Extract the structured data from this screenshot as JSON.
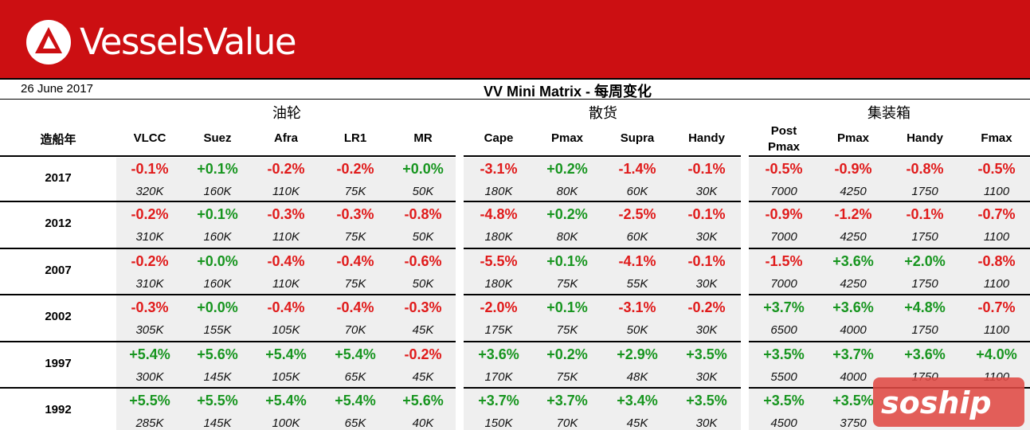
{
  "brand": {
    "name": "VesselsValue"
  },
  "report": {
    "date": "26 June 2017",
    "title": "VV Mini Matrix - 每周变化"
  },
  "groups": [
    "油轮",
    "散货",
    "集装箱"
  ],
  "year_header": "造船年",
  "columns": [
    "VLCC",
    "Suez",
    "Afra",
    "LR1",
    "MR",
    "Cape",
    "Pmax",
    "Supra",
    "Handy",
    "Post Pmax",
    "Pmax",
    "Handy",
    "Fmax"
  ],
  "rows": [
    {
      "year": "2017",
      "pct": [
        "-0.1%",
        "+0.1%",
        "-0.2%",
        "-0.2%",
        "+0.0%",
        "-3.1%",
        "+0.2%",
        "-1.4%",
        "-0.1%",
        "-0.5%",
        "-0.9%",
        "-0.8%",
        "-0.5%"
      ],
      "val": [
        "320K",
        "160K",
        "110K",
        "75K",
        "50K",
        "180K",
        "80K",
        "60K",
        "30K",
        "7000",
        "4250",
        "1750",
        "1100"
      ]
    },
    {
      "year": "2012",
      "pct": [
        "-0.2%",
        "+0.1%",
        "-0.3%",
        "-0.3%",
        "-0.8%",
        "-4.8%",
        "+0.2%",
        "-2.5%",
        "-0.1%",
        "-0.9%",
        "-1.2%",
        "-0.1%",
        "-0.7%"
      ],
      "val": [
        "310K",
        "160K",
        "110K",
        "75K",
        "50K",
        "180K",
        "80K",
        "60K",
        "30K",
        "7000",
        "4250",
        "1750",
        "1100"
      ]
    },
    {
      "year": "2007",
      "pct": [
        "-0.2%",
        "+0.0%",
        "-0.4%",
        "-0.4%",
        "-0.6%",
        "-5.5%",
        "+0.1%",
        "-4.1%",
        "-0.1%",
        "-1.5%",
        "+3.6%",
        "+2.0%",
        "-0.8%"
      ],
      "val": [
        "310K",
        "160K",
        "110K",
        "75K",
        "50K",
        "180K",
        "75K",
        "55K",
        "30K",
        "7000",
        "4250",
        "1750",
        "1100"
      ]
    },
    {
      "year": "2002",
      "pct": [
        "-0.3%",
        "+0.0%",
        "-0.4%",
        "-0.4%",
        "-0.3%",
        "-2.0%",
        "+0.1%",
        "-3.1%",
        "-0.2%",
        "+3.7%",
        "+3.6%",
        "+4.8%",
        "-0.7%"
      ],
      "val": [
        "305K",
        "155K",
        "105K",
        "70K",
        "45K",
        "175K",
        "75K",
        "50K",
        "30K",
        "6500",
        "4000",
        "1750",
        "1100"
      ]
    },
    {
      "year": "1997",
      "pct": [
        "+5.4%",
        "+5.6%",
        "+5.4%",
        "+5.4%",
        "-0.2%",
        "+3.6%",
        "+0.2%",
        "+2.9%",
        "+3.5%",
        "+3.5%",
        "+3.7%",
        "+3.6%",
        "+4.0%"
      ],
      "val": [
        "300K",
        "145K",
        "105K",
        "65K",
        "45K",
        "170K",
        "75K",
        "48K",
        "30K",
        "5500",
        "4000",
        "1750",
        "1100"
      ]
    },
    {
      "year": "1992",
      "pct": [
        "+5.5%",
        "+5.5%",
        "+5.4%",
        "+5.4%",
        "+5.6%",
        "+3.7%",
        "+3.7%",
        "+3.4%",
        "+3.5%",
        "+3.5%",
        "+3.5%",
        "",
        ""
      ],
      "val": [
        "285K",
        "145K",
        "100K",
        "65K",
        "40K",
        "150K",
        "70K",
        "45K",
        "30K",
        "4500",
        "3750",
        "",
        ""
      ]
    }
  ],
  "watermark": "soship",
  "colors": {
    "banner": "#cc0f12",
    "negative": "#e01b1b",
    "positive": "#17951f",
    "shade": "#efefef"
  }
}
